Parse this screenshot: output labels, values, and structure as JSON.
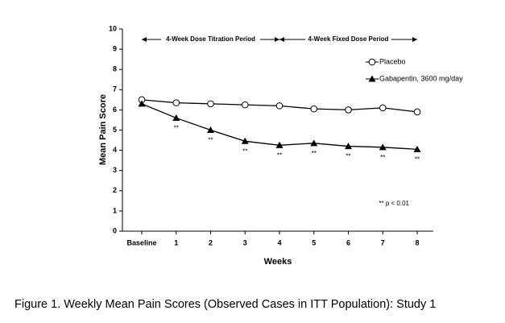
{
  "chart_data": {
    "type": "line",
    "caption": "Figure 1. Weekly Mean Pain Scores (Observed Cases in ITT Population): Study 1",
    "x_label": "Weeks",
    "y_label": "Mean Pain Score",
    "categories": [
      "Baseline",
      "1",
      "2",
      "3",
      "4",
      "5",
      "6",
      "7",
      "8"
    ],
    "series": [
      {
        "name": "Placebo",
        "color": "#000000",
        "marker": "open-circle",
        "values": [
          6.5,
          6.35,
          6.3,
          6.25,
          6.2,
          6.05,
          6.0,
          6.1,
          5.9
        ]
      },
      {
        "name": "Gabapentin, 3600 mg/day",
        "color": "#000000",
        "marker": "filled-triangle",
        "values": [
          6.3,
          5.6,
          5.0,
          4.45,
          4.25,
          4.35,
          4.2,
          4.15,
          4.05
        ],
        "point_annotations": [
          null,
          "**",
          "**",
          "**",
          "**",
          "**",
          "**",
          "**",
          "**"
        ]
      }
    ],
    "periods": [
      {
        "label": "4-Week Dose Titration Period",
        "from": "Baseline",
        "to": "4"
      },
      {
        "label": "4-Week Fixed Dose Period",
        "from": "4",
        "to": "8"
      }
    ],
    "annotation": "** p < 0.01",
    "ylim": [
      0,
      10
    ],
    "yticks": [
      0,
      1,
      2,
      3,
      4,
      5,
      6,
      7,
      8,
      9,
      10
    ],
    "legend": "top-right",
    "grid": false
  }
}
